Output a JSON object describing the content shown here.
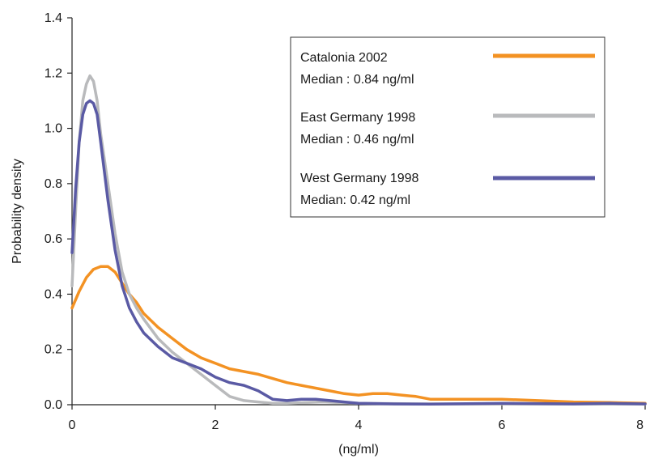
{
  "chart_data": {
    "type": "line",
    "xlabel": "(ng/ml)",
    "ylabel": "Probability density",
    "xlim": [
      0,
      8
    ],
    "ylim": [
      0,
      1.4
    ],
    "xticks": [
      0,
      2,
      4,
      6,
      8
    ],
    "yticks": [
      0.0,
      0.2,
      0.4,
      0.6,
      0.8,
      1.0,
      1.2,
      1.4
    ],
    "xtick_labels": [
      "0",
      "2",
      "4",
      "6",
      "8"
    ],
    "ytick_labels": [
      "0.0",
      "0.2",
      "0.4",
      "0.6",
      "0.8",
      "1.0",
      "1.2",
      "1.4"
    ],
    "grid": false,
    "legend_position": "top-right",
    "series": [
      {
        "name": "Catalonia 2002",
        "median_label": "Median : 0.84 ng/ml",
        "color": "#f39223",
        "points": [
          [
            0,
            0.35
          ],
          [
            0.1,
            0.41
          ],
          [
            0.2,
            0.46
          ],
          [
            0.3,
            0.49
          ],
          [
            0.4,
            0.5
          ],
          [
            0.5,
            0.5
          ],
          [
            0.6,
            0.48
          ],
          [
            0.7,
            0.44
          ],
          [
            0.8,
            0.4
          ],
          [
            0.9,
            0.37
          ],
          [
            1.0,
            0.33
          ],
          [
            1.2,
            0.28
          ],
          [
            1.4,
            0.24
          ],
          [
            1.6,
            0.2
          ],
          [
            1.8,
            0.17
          ],
          [
            2.0,
            0.15
          ],
          [
            2.2,
            0.13
          ],
          [
            2.4,
            0.12
          ],
          [
            2.6,
            0.11
          ],
          [
            2.8,
            0.095
          ],
          [
            3.0,
            0.08
          ],
          [
            3.2,
            0.07
          ],
          [
            3.4,
            0.06
          ],
          [
            3.6,
            0.05
          ],
          [
            3.8,
            0.04
          ],
          [
            4.0,
            0.035
          ],
          [
            4.2,
            0.04
          ],
          [
            4.4,
            0.04
          ],
          [
            4.6,
            0.035
          ],
          [
            4.8,
            0.03
          ],
          [
            5.0,
            0.02
          ],
          [
            5.2,
            0.02
          ],
          [
            5.5,
            0.02
          ],
          [
            6.0,
            0.02
          ],
          [
            6.5,
            0.015
          ],
          [
            7.0,
            0.01
          ],
          [
            7.5,
            0.008
          ],
          [
            8.0,
            0.005
          ]
        ]
      },
      {
        "name": "East Germany 1998",
        "median_label": "Median : 0.46 ng/ml",
        "color": "#b9babc",
        "points": [
          [
            0,
            0.43
          ],
          [
            0.05,
            0.7
          ],
          [
            0.1,
            0.95
          ],
          [
            0.15,
            1.1
          ],
          [
            0.2,
            1.16
          ],
          [
            0.25,
            1.19
          ],
          [
            0.3,
            1.17
          ],
          [
            0.35,
            1.1
          ],
          [
            0.4,
            0.98
          ],
          [
            0.5,
            0.8
          ],
          [
            0.6,
            0.62
          ],
          [
            0.7,
            0.48
          ],
          [
            0.8,
            0.4
          ],
          [
            0.9,
            0.35
          ],
          [
            1.0,
            0.31
          ],
          [
            1.2,
            0.24
          ],
          [
            1.4,
            0.19
          ],
          [
            1.6,
            0.15
          ],
          [
            1.8,
            0.11
          ],
          [
            2.0,
            0.07
          ],
          [
            2.2,
            0.03
          ],
          [
            2.4,
            0.015
          ],
          [
            2.6,
            0.01
          ],
          [
            2.8,
            0.005
          ],
          [
            3.0,
            0.005
          ],
          [
            3.5,
            0.01
          ],
          [
            4.0,
            0.005
          ],
          [
            5.0,
            0.003
          ],
          [
            6.0,
            0.003
          ],
          [
            7.0,
            0.002
          ],
          [
            8.0,
            0.002
          ]
        ]
      },
      {
        "name": "West Germany 1998",
        "median_label": "Median: 0.42 ng/ml",
        "color": "#5a5aa4",
        "points": [
          [
            0,
            0.55
          ],
          [
            0.05,
            0.78
          ],
          [
            0.1,
            0.95
          ],
          [
            0.15,
            1.05
          ],
          [
            0.2,
            1.09
          ],
          [
            0.25,
            1.1
          ],
          [
            0.3,
            1.09
          ],
          [
            0.35,
            1.05
          ],
          [
            0.4,
            0.95
          ],
          [
            0.5,
            0.74
          ],
          [
            0.6,
            0.56
          ],
          [
            0.7,
            0.43
          ],
          [
            0.8,
            0.35
          ],
          [
            0.9,
            0.3
          ],
          [
            1.0,
            0.26
          ],
          [
            1.2,
            0.21
          ],
          [
            1.4,
            0.17
          ],
          [
            1.6,
            0.15
          ],
          [
            1.8,
            0.13
          ],
          [
            2.0,
            0.1
          ],
          [
            2.2,
            0.08
          ],
          [
            2.4,
            0.07
          ],
          [
            2.6,
            0.05
          ],
          [
            2.8,
            0.02
          ],
          [
            3.0,
            0.015
          ],
          [
            3.2,
            0.02
          ],
          [
            3.4,
            0.02
          ],
          [
            3.6,
            0.015
          ],
          [
            3.8,
            0.01
          ],
          [
            4.0,
            0.005
          ],
          [
            4.5,
            0.003
          ],
          [
            5.0,
            0.002
          ],
          [
            6.0,
            0.005
          ],
          [
            7.0,
            0.003
          ],
          [
            7.5,
            0.005
          ],
          [
            8.0,
            0.003
          ]
        ]
      }
    ]
  }
}
